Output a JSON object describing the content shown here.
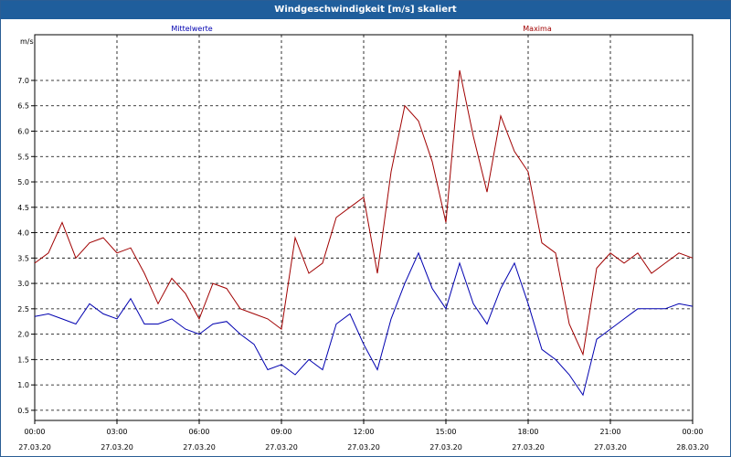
{
  "window": {
    "title": "Windgeschwindigkeit [m/s] skaliert"
  },
  "chart_data": {
    "type": "line",
    "title": "Windgeschwindigkeit [m/s] skaliert",
    "ylabel": "m/s",
    "ylim": [
      0.3,
      7.9
    ],
    "xlim": [
      0,
      24
    ],
    "y_ticks": [
      "0.5",
      "1.0",
      "1.5",
      "2.0",
      "2.5",
      "3.0",
      "3.5",
      "4.0",
      "4.5",
      "5.0",
      "5.5",
      "6.0",
      "6.5",
      "7.0"
    ],
    "x_ticks": [
      {
        "time": "00:00",
        "date": "27.03.20"
      },
      {
        "time": "03:00",
        "date": "27.03.20"
      },
      {
        "time": "06:00",
        "date": "27.03.20"
      },
      {
        "time": "09:00",
        "date": "27.03.20"
      },
      {
        "time": "12:00",
        "date": "27.03.20"
      },
      {
        "time": "15:00",
        "date": "27.03.20"
      },
      {
        "time": "18:00",
        "date": "27.03.20"
      },
      {
        "time": "21:00",
        "date": "27.03.20"
      },
      {
        "time": "00:00",
        "date": "28.03.20"
      }
    ],
    "grid": true,
    "legend_position": "top",
    "colors": {
      "mittel": "#0000b0",
      "max": "#a00000"
    },
    "x": [
      0,
      0.5,
      1,
      1.5,
      2,
      2.5,
      3,
      3.5,
      4,
      4.5,
      5,
      5.5,
      6,
      6.5,
      7,
      7.5,
      8,
      8.5,
      9,
      9.5,
      10,
      10.5,
      11,
      11.5,
      12,
      12.5,
      13,
      13.5,
      14,
      14.5,
      15,
      15.5,
      16,
      16.5,
      17,
      17.5,
      18,
      18.5,
      19,
      19.5,
      20,
      20.5,
      21,
      21.5,
      22,
      22.5,
      23,
      23.5,
      24
    ],
    "series": [
      {
        "name": "Mittelwerte",
        "values": [
          2.35,
          2.4,
          2.3,
          2.2,
          2.6,
          2.4,
          2.3,
          2.7,
          2.2,
          2.2,
          2.3,
          2.1,
          2.0,
          2.2,
          2.25,
          2.0,
          1.8,
          1.3,
          1.4,
          1.2,
          1.5,
          1.3,
          2.2,
          2.4,
          1.8,
          1.3,
          2.3,
          3.0,
          3.6,
          2.9,
          2.5,
          3.4,
          2.6,
          2.2,
          2.9,
          3.4,
          2.6,
          1.7,
          1.5,
          1.2,
          0.8,
          1.9,
          2.1,
          2.3,
          2.5,
          2.5,
          2.5,
          2.6,
          2.55
        ]
      },
      {
        "name": "Maxima",
        "values": [
          3.4,
          3.6,
          4.2,
          3.5,
          3.8,
          3.9,
          3.6,
          3.7,
          3.2,
          2.6,
          3.1,
          2.8,
          2.3,
          3.0,
          2.9,
          2.5,
          2.4,
          2.3,
          2.1,
          3.9,
          3.2,
          3.4,
          4.3,
          4.5,
          4.7,
          3.2,
          5.2,
          6.5,
          6.2,
          5.4,
          4.2,
          7.2,
          5.9,
          4.8,
          6.3,
          5.6,
          5.2,
          3.8,
          3.6,
          2.2,
          1.6,
          3.3,
          3.6,
          3.4,
          3.6,
          3.2,
          3.4,
          3.6,
          3.5
        ]
      }
    ]
  }
}
